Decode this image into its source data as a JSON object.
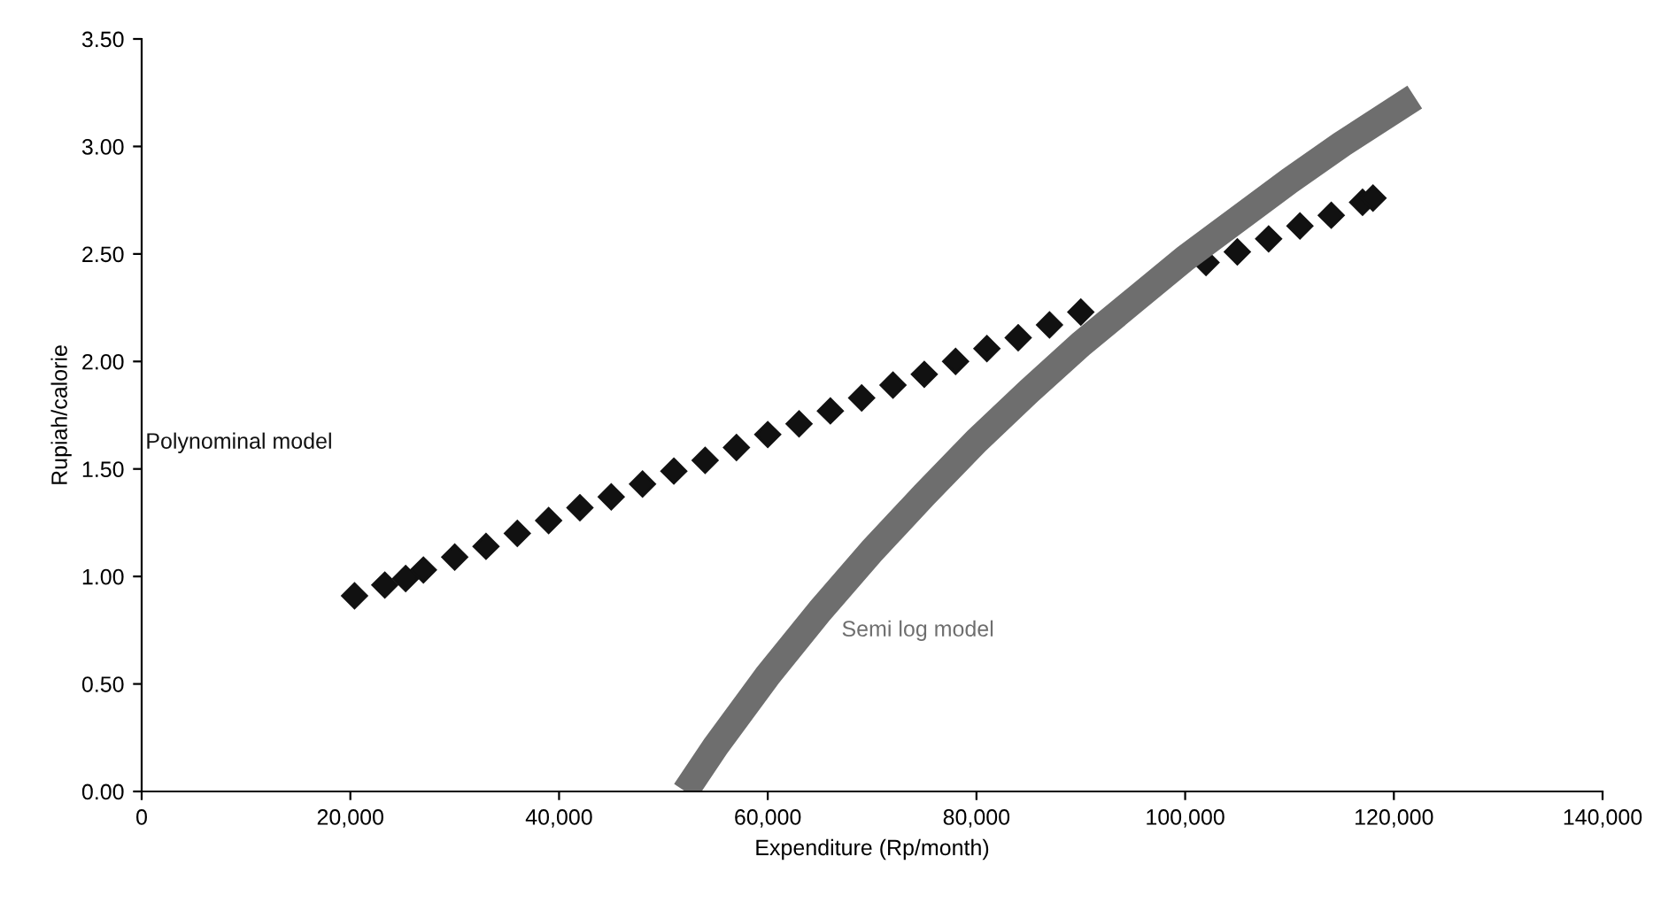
{
  "chart_data": {
    "type": "scatter",
    "xlabel": "Expenditure (Rp/month)",
    "ylabel": "Rupiah/calorie",
    "xlim": [
      0,
      140000
    ],
    "xticks": [
      {
        "value": 0,
        "label": "0"
      },
      {
        "value": 20000,
        "label": "20,000"
      },
      {
        "value": 40000,
        "label": "40,000"
      },
      {
        "value": 60000,
        "label": "60,000"
      },
      {
        "value": 80000,
        "label": "80,000"
      },
      {
        "value": 100000,
        "label": "100,000"
      },
      {
        "value": 120000,
        "label": "120,000"
      },
      {
        "value": 140000,
        "label": "140,000"
      }
    ],
    "ylim": [
      0,
      3.5
    ],
    "yticks": [
      {
        "value": 0,
        "label": "0.00"
      },
      {
        "value": 0.5,
        "label": "0.50"
      },
      {
        "value": 1,
        "label": "1.00"
      },
      {
        "value": 1.5,
        "label": "1.50"
      },
      {
        "value": 2,
        "label": "2.00"
      },
      {
        "value": 2.5,
        "label": "2.50"
      },
      {
        "value": 3,
        "label": "3.00"
      },
      {
        "value": 3.5,
        "label": "3.50"
      }
    ],
    "grid": false,
    "legend": false,
    "series": [
      {
        "name": "Polynominal model",
        "marker": "diamond",
        "color": "#111111",
        "x": [
          20400,
          23300,
          25300,
          27000,
          30000,
          33000,
          36000,
          39000,
          42000,
          45000,
          48000,
          51000,
          54000,
          57000,
          60000,
          63000,
          66000,
          69000,
          72000,
          75000,
          78000,
          81000,
          84000,
          87000,
          90000,
          93000,
          99000,
          102000,
          105000,
          108000,
          111000,
          114000,
          117000,
          118000
        ],
        "values": [
          0.91,
          0.96,
          0.99,
          1.03,
          1.09,
          1.14,
          1.2,
          1.26,
          1.32,
          1.37,
          1.43,
          1.49,
          1.54,
          1.6,
          1.66,
          1.71,
          1.77,
          1.83,
          1.89,
          1.94,
          2.0,
          2.06,
          2.11,
          2.17,
          2.23,
          null,
          null,
          2.46,
          2.51,
          2.57,
          2.63,
          2.68,
          2.74,
          2.76
        ]
      },
      {
        "name": "Semi log model",
        "type": "line",
        "marker": "none",
        "color": "#6e6e6e",
        "x": [
          52100,
          55000,
          60000,
          65000,
          70000,
          75000,
          80000,
          85000,
          90000,
          95000,
          100000,
          105000,
          110000,
          115000,
          122000
        ],
        "values": [
          0,
          0.21,
          0.54,
          0.84,
          1.12,
          1.38,
          1.63,
          1.86,
          2.08,
          2.28,
          2.48,
          2.66,
          2.84,
          3.01,
          3.23
        ]
      }
    ]
  }
}
